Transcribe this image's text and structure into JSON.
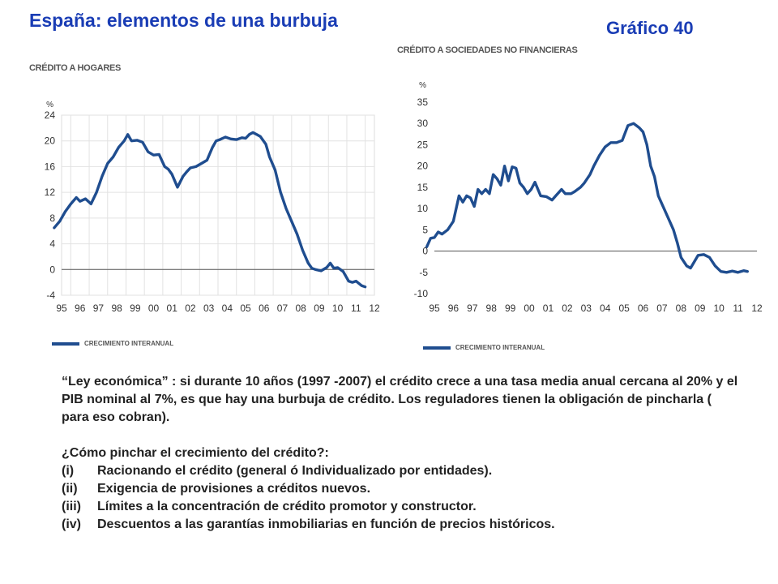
{
  "header": {
    "title": "España: elementos de una burbuja",
    "figure_label": "Gráfico 40"
  },
  "body_text": {
    "paragraph": "“Ley económica” : si durante 10 años (1997 -2007) el crédito crece a una tasa media anual cercana al 20% y el PIB nominal al 7%, es que hay una burbuja de crédito. Los reguladores tienen la obligación de pincharla ( para eso cobran).",
    "question": "¿Cómo pinchar el crecimiento del crédito?:",
    "items": [
      {
        "num": "(i)",
        "text": "Racionando el crédito (general ó Individualizado por entidades)."
      },
      {
        "num": "(ii)",
        "text": "Exigencia de provisiones a créditos nuevos."
      },
      {
        "num": "(iii)",
        "text": "Límites a la concentración de crédito promotor y constructor."
      },
      {
        "num": "(iv)",
        "text": "Descuentos a las garantías inmobiliarias en función de precios históricos."
      }
    ]
  },
  "chart_data": [
    {
      "type": "line",
      "title": "CRÉDITO A HOGARES",
      "ylabel": "%",
      "legend": "CRECIMIENTO INTERANUAL",
      "x_tick_labels": [
        "95",
        "96",
        "97",
        "98",
        "99",
        "00",
        "01",
        "02",
        "03",
        "04",
        "05",
        "06",
        "07",
        "08",
        "09",
        "10",
        "11",
        "12"
      ],
      "y_ticks": [
        24,
        20,
        16,
        12,
        8,
        4,
        0,
        -4
      ],
      "xlim": [
        1995,
        2012
      ],
      "ylim": [
        -4,
        24
      ],
      "grid": true,
      "line_color": "#1f4d8f",
      "series": [
        {
          "x": [
            1994.6,
            1994.9,
            1995.2,
            1995.5,
            1995.8,
            1996.0,
            1996.3,
            1996.6,
            1996.9,
            1997.2,
            1997.5,
            1997.8,
            1998.1,
            1998.4,
            1998.6,
            1998.8,
            1999.1,
            1999.4,
            1999.7,
            2000.0,
            2000.3,
            2000.6,
            2000.8,
            2001.0,
            2001.3,
            2001.6,
            2001.8,
            2002.0,
            2002.3,
            2002.6,
            2002.9,
            2003.2,
            2003.4,
            2003.6,
            2003.9,
            2004.2,
            2004.5,
            2004.8,
            2005.0,
            2005.2,
            2005.4,
            2005.6,
            2005.8,
            2006.1,
            2006.3,
            2006.6,
            2006.9,
            2007.2,
            2007.5,
            2007.8,
            2008.1,
            2008.4,
            2008.6,
            2008.8,
            2009.1,
            2009.4,
            2009.6,
            2009.8,
            2010.0,
            2010.3,
            2010.6,
            2010.8,
            2011.0,
            2011.3,
            2011.5
          ],
          "values": [
            6.5,
            7.5,
            9.0,
            10.2,
            11.2,
            10.6,
            11.0,
            10.2,
            12.0,
            14.5,
            16.5,
            17.5,
            19.0,
            20.0,
            21.0,
            20.0,
            20.1,
            19.8,
            18.3,
            17.8,
            17.9,
            16.0,
            15.6,
            14.8,
            12.8,
            14.5,
            15.2,
            15.8,
            16.0,
            16.5,
            17.0,
            19.0,
            20.0,
            20.2,
            20.6,
            20.3,
            20.2,
            20.5,
            20.4,
            21.0,
            21.3,
            21.0,
            20.7,
            19.5,
            17.5,
            15.5,
            12.0,
            9.5,
            7.5,
            5.5,
            3.0,
            1.0,
            0.2,
            0.0,
            -0.2,
            0.3,
            1.0,
            0.2,
            0.3,
            -0.3,
            -1.8,
            -2.0,
            -1.8,
            -2.5,
            -2.7
          ]
        }
      ]
    },
    {
      "type": "line",
      "title": "CRÉDITO A SOCIEDADES NO FINANCIERAS",
      "ylabel": "%",
      "legend": "CRECIMIENTO INTERANUAL",
      "x_tick_labels": [
        "95",
        "96",
        "97",
        "98",
        "99",
        "00",
        "01",
        "02",
        "03",
        "04",
        "05",
        "06",
        "07",
        "08",
        "09",
        "10",
        "11",
        "12"
      ],
      "y_ticks": [
        35,
        30,
        25,
        20,
        15,
        10,
        5,
        0,
        -5,
        -10
      ],
      "xlim": [
        1995,
        2012
      ],
      "ylim": [
        -10,
        35
      ],
      "grid": false,
      "line_color": "#1f4d8f",
      "series": [
        {
          "x": [
            1994.6,
            1994.8,
            1995.0,
            1995.2,
            1995.4,
            1995.7,
            1996.0,
            1996.3,
            1996.5,
            1996.7,
            1996.9,
            1997.1,
            1997.3,
            1997.5,
            1997.7,
            1997.9,
            1998.1,
            1998.3,
            1998.5,
            1998.7,
            1998.9,
            1999.1,
            1999.3,
            1999.5,
            1999.7,
            1999.9,
            2000.1,
            2000.3,
            2000.6,
            2000.9,
            2001.2,
            2001.4,
            2001.7,
            2001.9,
            2002.2,
            2002.4,
            2002.7,
            2002.9,
            2003.2,
            2003.4,
            2003.7,
            2004.0,
            2004.3,
            2004.6,
            2004.9,
            2005.2,
            2005.5,
            2005.8,
            2006.0,
            2006.2,
            2006.4,
            2006.6,
            2006.8,
            2007.1,
            2007.3,
            2007.6,
            2007.8,
            2008.0,
            2008.3,
            2008.5,
            2008.7,
            2008.9,
            2009.2,
            2009.5,
            2009.8,
            2010.1,
            2010.4,
            2010.7,
            2011.0,
            2011.3,
            2011.5
          ],
          "values": [
            1.0,
            3.0,
            3.2,
            4.5,
            4.0,
            5.0,
            7.0,
            13.0,
            11.5,
            13.0,
            12.5,
            10.5,
            14.5,
            13.5,
            14.5,
            13.5,
            18.0,
            17.0,
            15.5,
            20.0,
            16.5,
            19.8,
            19.5,
            16.0,
            15.0,
            13.5,
            14.5,
            16.2,
            13.0,
            12.8,
            12.0,
            13.0,
            14.5,
            13.5,
            13.5,
            14.0,
            15.0,
            16.0,
            18.0,
            20.0,
            22.5,
            24.5,
            25.5,
            25.5,
            26.0,
            29.5,
            30.0,
            29.0,
            28.0,
            25.0,
            20.0,
            17.5,
            13.0,
            10.0,
            8.0,
            5.0,
            2.0,
            -1.5,
            -3.5,
            -4.0,
            -2.5,
            -1.0,
            -0.8,
            -1.5,
            -3.5,
            -4.8,
            -5.0,
            -4.7,
            -5.0,
            -4.6,
            -4.8
          ]
        }
      ]
    }
  ]
}
